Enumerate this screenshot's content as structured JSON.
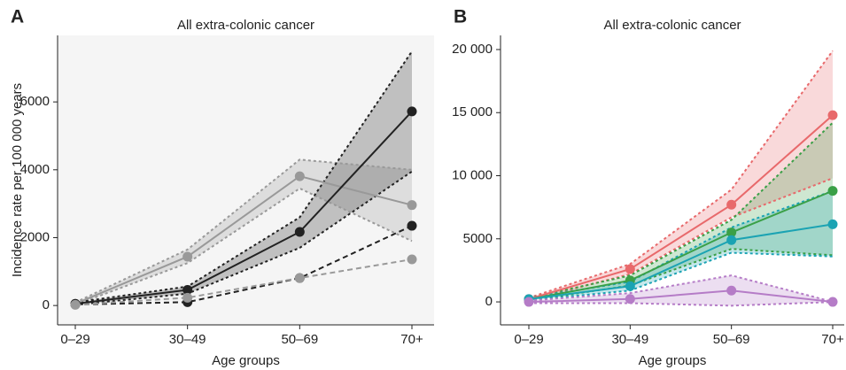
{
  "chart_data": [
    {
      "type": "line",
      "panel_label": "A",
      "title": "All extra-colonic cancer",
      "x_label": "Age groups",
      "y_label": "Incidence rate per 100 000 years",
      "categories": [
        "0–29",
        "30–49",
        "50–69",
        "70+"
      ],
      "ylim": [
        -570,
        7960
      ],
      "yticks": [
        0,
        2000,
        4000,
        6000
      ],
      "series": [
        {
          "color": "#999999",
          "values": [
            50,
            1440,
            3810,
            2960
          ],
          "lower": [
            20,
            1250,
            3450,
            1900
          ],
          "upper": [
            90,
            1650,
            4300,
            4000
          ]
        },
        {
          "color": "#222222",
          "values": [
            50,
            460,
            2170,
            5720
          ],
          "lower": [
            20,
            350,
            1700,
            3950
          ],
          "upper": [
            90,
            560,
            2600,
            7490
          ]
        },
        {
          "color": "#222222",
          "dash": true,
          "values": [
            30,
            100,
            810,
            2350
          ]
        },
        {
          "color": "#999999",
          "dash": true,
          "values": [
            20,
            230,
            810,
            1360
          ]
        }
      ]
    },
    {
      "type": "line",
      "panel_label": "B",
      "title": "All extra-colonic cancer",
      "x_label": "Age groups",
      "categories": [
        "0–29",
        "30–49",
        "50–69",
        "70+"
      ],
      "ylim": [
        -1820,
        21120
      ],
      "yticks": [
        0,
        5000,
        {
          "value": 10000,
          "label": "10 000"
        },
        {
          "value": 15000,
          "label": "15 000"
        },
        {
          "value": 20000,
          "label": "20 000"
        }
      ],
      "series": [
        {
          "color": "#e8696b",
          "values": [
            220,
            2600,
            7700,
            14800
          ],
          "lower": [
            120,
            2200,
            6700,
            9800
          ],
          "upper": [
            320,
            3000,
            8900,
            19900
          ]
        },
        {
          "color": "#3aa047",
          "values": [
            200,
            1700,
            5500,
            8800
          ],
          "lower": [
            100,
            1300,
            4200,
            3700
          ],
          "upper": [
            300,
            2100,
            6500,
            14200
          ]
        },
        {
          "color": "#1ba3b3",
          "values": [
            220,
            1250,
            4900,
            6150
          ],
          "lower": [
            120,
            900,
            3900,
            3600
          ],
          "upper": [
            320,
            1600,
            5900,
            8800
          ]
        },
        {
          "color": "#b57cc7",
          "values": [
            0,
            230,
            900,
            0
          ],
          "lower": [
            -100,
            -100,
            -300,
            -10
          ],
          "upper": [
            100,
            700,
            2100,
            10
          ]
        }
      ]
    }
  ]
}
